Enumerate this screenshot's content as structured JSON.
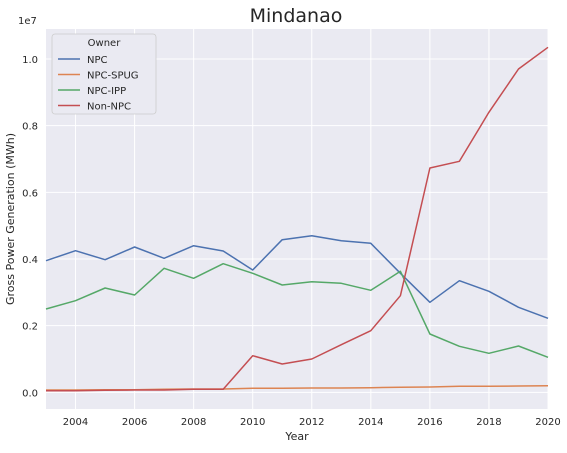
{
  "chart_data": {
    "type": "line",
    "title": "Mindanao",
    "xlabel": "Year",
    "ylabel": "Gross Power Generation (MWh)",
    "y_multiplier_label": "1e7",
    "xlim": [
      2003,
      2020
    ],
    "ylim": [
      -0.05,
      1.09
    ],
    "x_ticks": [
      2004,
      2006,
      2008,
      2010,
      2012,
      2014,
      2016,
      2018,
      2020
    ],
    "y_ticks": [
      0.0,
      0.2,
      0.4,
      0.6,
      0.8,
      1.0
    ],
    "y_tick_labels": [
      "0.0",
      "0.2",
      "0.4",
      "0.6",
      "0.8",
      "1.0"
    ],
    "grid": true,
    "legend": {
      "title": "Owner",
      "placement": "top-left"
    },
    "x": [
      2003,
      2004,
      2005,
      2006,
      2007,
      2008,
      2009,
      2010,
      2011,
      2012,
      2013,
      2014,
      2015,
      2016,
      2017,
      2018,
      2019,
      2020
    ],
    "series": [
      {
        "name": "NPC",
        "color": "#4c72b0",
        "values": [
          0.395,
          0.425,
          0.398,
          0.436,
          0.402,
          0.44,
          0.424,
          0.367,
          0.458,
          0.47,
          0.455,
          0.447,
          0.357,
          0.27,
          0.335,
          0.303,
          0.255,
          0.222
        ]
      },
      {
        "name": "NPC-SPUG",
        "color": "#dd8452",
        "values": [
          0.007,
          0.007,
          0.008,
          0.008,
          0.009,
          0.01,
          0.01,
          0.012,
          0.012,
          0.013,
          0.013,
          0.014,
          0.015,
          0.016,
          0.018,
          0.018,
          0.019,
          0.02
        ]
      },
      {
        "name": "NPC-IPP",
        "color": "#55a868",
        "values": [
          0.25,
          0.275,
          0.313,
          0.292,
          0.372,
          0.342,
          0.386,
          0.357,
          0.322,
          0.332,
          0.327,
          0.306,
          0.363,
          0.175,
          0.138,
          0.117,
          0.139,
          0.105
        ]
      },
      {
        "name": "Non-NPC",
        "color": "#c44e52",
        "values": [
          0.005,
          0.005,
          0.006,
          0.007,
          0.007,
          0.009,
          0.009,
          0.11,
          0.085,
          0.1,
          0.143,
          0.185,
          0.29,
          0.673,
          0.693,
          0.84,
          0.97,
          1.035
        ]
      }
    ]
  }
}
